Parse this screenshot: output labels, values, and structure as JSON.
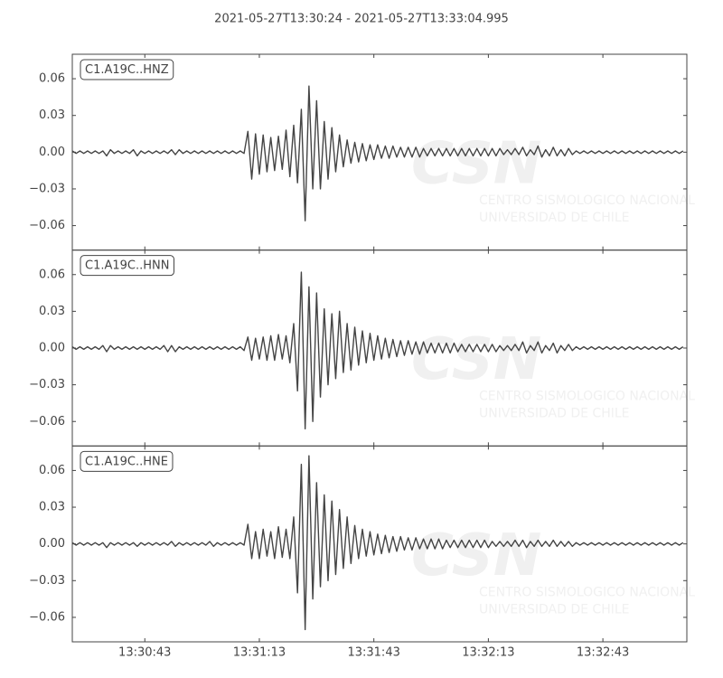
{
  "title": "2021-05-27T13:30:24  -  2021-05-27T13:33:04.995",
  "watermark": [
    "CSN",
    "CENTRO SISMOLOGICO NACIONAL",
    "UNIVERSIDAD DE CHILE"
  ],
  "chart_data": [
    {
      "type": "line",
      "label": "C1.A19C..HNZ",
      "color": "#444444",
      "xlim": [
        0,
        160.995
      ],
      "ylim": [
        -0.08,
        0.08
      ],
      "yticks": [
        {
          "value": -0.06,
          "label": "−0.06"
        },
        {
          "value": -0.03,
          "label": "−0.03"
        },
        {
          "value": 0,
          "label": "0.00"
        },
        0.03,
        0.06
      ],
      "x": [
        0,
        1,
        2,
        3,
        4,
        5,
        6,
        7,
        8,
        9,
        10,
        11,
        12,
        13,
        14,
        15,
        16,
        17,
        18,
        19,
        20,
        21,
        22,
        23,
        24,
        25,
        26,
        27,
        28,
        29,
        30,
        31,
        32,
        33,
        34,
        35,
        36,
        37,
        38,
        39,
        40,
        41,
        42,
        43,
        44,
        45,
        46,
        47,
        48,
        49,
        50,
        51,
        52,
        53,
        54,
        55,
        56,
        57,
        58,
        59,
        60,
        61,
        62,
        63,
        64,
        65,
        66,
        67,
        68,
        69,
        70,
        71,
        72,
        73,
        74,
        75,
        76,
        77,
        78,
        79,
        80,
        81,
        82,
        83,
        84,
        85,
        86,
        87,
        88,
        89,
        90,
        91,
        92,
        93,
        94,
        95,
        96,
        97,
        98,
        99,
        100,
        101,
        102,
        103,
        104,
        105,
        106,
        107,
        108,
        109,
        110,
        111,
        112,
        113,
        114,
        115,
        116,
        117,
        118,
        119,
        120,
        121,
        122,
        123,
        124,
        125,
        126,
        127,
        128,
        129,
        130,
        131,
        132,
        133,
        134,
        135,
        136,
        137,
        138,
        139,
        140,
        141,
        142,
        143,
        144,
        145,
        146,
        147,
        148,
        149,
        150,
        151,
        152,
        153,
        154,
        155,
        156,
        157,
        158,
        159,
        160
      ],
      "values": [
        0.001,
        -0.001,
        0.001,
        -0.001,
        0.001,
        -0.001,
        0.001,
        -0.001,
        0.001,
        -0.003,
        0.002,
        -0.001,
        0.001,
        -0.001,
        0.001,
        -0.001,
        0.002,
        -0.003,
        0.001,
        -0.001,
        0.001,
        -0.001,
        0.001,
        -0.001,
        0.001,
        -0.001,
        0.002,
        -0.002,
        0.002,
        -0.001,
        0.001,
        -0.001,
        0.001,
        -0.001,
        0.001,
        -0.001,
        0.001,
        -0.001,
        0.001,
        -0.001,
        0.001,
        -0.001,
        0.001,
        -0.001,
        0.001,
        -0.001,
        0.017,
        -0.022,
        0.015,
        -0.018,
        0.014,
        -0.016,
        0.012,
        -0.015,
        0.013,
        -0.014,
        0.018,
        -0.02,
        0.022,
        -0.025,
        0.035,
        -0.056,
        0.054,
        -0.03,
        0.042,
        -0.03,
        0.025,
        -0.022,
        0.02,
        -0.016,
        0.014,
        -0.012,
        0.01,
        -0.009,
        0.008,
        -0.008,
        0.007,
        -0.007,
        0.006,
        -0.006,
        0.006,
        -0.005,
        0.005,
        -0.005,
        0.005,
        -0.004,
        0.004,
        -0.004,
        0.004,
        -0.004,
        0.004,
        -0.004,
        0.003,
        -0.003,
        0.003,
        -0.003,
        0.003,
        -0.003,
        0.003,
        -0.003,
        0.003,
        -0.003,
        0.003,
        -0.003,
        0.003,
        -0.003,
        0.003,
        -0.003,
        0.003,
        -0.003,
        0.003,
        -0.003,
        0.003,
        -0.002,
        0.002,
        -0.002,
        0.003,
        -0.002,
        0.004,
        -0.003,
        0.002,
        -0.002,
        0.005,
        -0.004,
        0.002,
        -0.003,
        0.004,
        -0.003,
        0.002,
        -0.003,
        0.003,
        -0.002,
        0.001,
        -0.001,
        0.001,
        -0.001,
        0.001,
        -0.001,
        0.001,
        -0.001,
        0.001,
        -0.001,
        0.001,
        -0.001,
        0.001,
        -0.001,
        0.001,
        -0.001,
        0.001,
        -0.001,
        0.001,
        -0.001,
        0.001,
        -0.001,
        0.001,
        -0.001,
        0.001,
        -0.001,
        0.001,
        -0.001,
        0.001
      ]
    },
    {
      "type": "line",
      "label": "C1.A19C..HNN",
      "color": "#444444",
      "xlim": [
        0,
        160.995
      ],
      "ylim": [
        -0.08,
        0.08
      ],
      "yticks": [
        {
          "value": -0.06,
          "label": "−0.06"
        },
        {
          "value": -0.03,
          "label": "−0.03"
        },
        {
          "value": 0,
          "label": "0.00"
        },
        0.03,
        0.06
      ],
      "x": [
        0,
        1,
        2,
        3,
        4,
        5,
        6,
        7,
        8,
        9,
        10,
        11,
        12,
        13,
        14,
        15,
        16,
        17,
        18,
        19,
        20,
        21,
        22,
        23,
        24,
        25,
        26,
        27,
        28,
        29,
        30,
        31,
        32,
        33,
        34,
        35,
        36,
        37,
        38,
        39,
        40,
        41,
        42,
        43,
        44,
        45,
        46,
        47,
        48,
        49,
        50,
        51,
        52,
        53,
        54,
        55,
        56,
        57,
        58,
        59,
        60,
        61,
        62,
        63,
        64,
        65,
        66,
        67,
        68,
        69,
        70,
        71,
        72,
        73,
        74,
        75,
        76,
        77,
        78,
        79,
        80,
        81,
        82,
        83,
        84,
        85,
        86,
        87,
        88,
        89,
        90,
        91,
        92,
        93,
        94,
        95,
        96,
        97,
        98,
        99,
        100,
        101,
        102,
        103,
        104,
        105,
        106,
        107,
        108,
        109,
        110,
        111,
        112,
        113,
        114,
        115,
        116,
        117,
        118,
        119,
        120,
        121,
        122,
        123,
        124,
        125,
        126,
        127,
        128,
        129,
        130,
        131,
        132,
        133,
        134,
        135,
        136,
        137,
        138,
        139,
        140,
        141,
        142,
        143,
        144,
        145,
        146,
        147,
        148,
        149,
        150,
        151,
        152,
        153,
        154,
        155,
        156,
        157,
        158,
        159,
        160
      ],
      "values": [
        0.001,
        -0.001,
        0.001,
        -0.001,
        0.001,
        -0.001,
        0.001,
        -0.001,
        0.002,
        -0.003,
        0.002,
        -0.001,
        0.001,
        -0.001,
        0.001,
        -0.001,
        0.001,
        -0.001,
        0.001,
        -0.001,
        0.001,
        -0.001,
        0.001,
        -0.001,
        0.002,
        -0.003,
        0.002,
        -0.003,
        0.001,
        -0.001,
        0.001,
        -0.001,
        0.001,
        -0.001,
        0.001,
        -0.001,
        0.001,
        -0.001,
        0.001,
        -0.001,
        0.001,
        -0.001,
        0.001,
        -0.001,
        0.001,
        -0.002,
        0.009,
        -0.01,
        0.008,
        -0.009,
        0.009,
        -0.01,
        0.01,
        -0.01,
        0.011,
        -0.009,
        0.01,
        -0.012,
        0.02,
        -0.035,
        0.062,
        -0.066,
        0.05,
        -0.06,
        0.045,
        -0.04,
        0.032,
        -0.03,
        0.028,
        -0.025,
        0.03,
        -0.02,
        0.02,
        -0.018,
        0.017,
        -0.014,
        0.014,
        -0.012,
        0.012,
        -0.01,
        0.01,
        -0.009,
        0.008,
        -0.008,
        0.007,
        -0.007,
        0.006,
        -0.006,
        0.006,
        -0.005,
        0.005,
        -0.005,
        0.005,
        -0.004,
        0.004,
        -0.004,
        0.004,
        -0.004,
        0.004,
        -0.004,
        0.004,
        -0.003,
        0.003,
        -0.003,
        0.003,
        -0.003,
        0.003,
        -0.003,
        0.003,
        -0.003,
        0.003,
        -0.003,
        0.002,
        -0.002,
        0.002,
        -0.002,
        0.003,
        -0.002,
        0.005,
        -0.004,
        0.002,
        -0.002,
        0.005,
        -0.004,
        0.002,
        -0.002,
        0.004,
        -0.004,
        0.002,
        -0.002,
        0.003,
        -0.002,
        0.001,
        -0.001,
        0.001,
        -0.001,
        0.001,
        -0.001,
        0.001,
        -0.001,
        0.001,
        -0.001,
        0.001,
        -0.001,
        0.001,
        -0.001,
        0.001,
        -0.001,
        0.001,
        -0.001,
        0.001,
        -0.001,
        0.001,
        -0.001,
        0.001,
        -0.001,
        0.001,
        -0.001,
        0.001,
        -0.001,
        0.001
      ]
    },
    {
      "type": "line",
      "label": "C1.A19C..HNE",
      "color": "#444444",
      "xlim": [
        0,
        160.995
      ],
      "ylim": [
        -0.08,
        0.08
      ],
      "yticks": [
        {
          "value": -0.06,
          "label": "−0.06"
        },
        {
          "value": -0.03,
          "label": "−0.03"
        },
        {
          "value": 0,
          "label": "0.00"
        },
        0.03,
        0.06
      ],
      "xticks": [
        {
          "value": 19,
          "label": "13:30:43"
        },
        {
          "value": 49,
          "label": "13:31:13"
        },
        {
          "value": 79,
          "label": "13:31:43"
        },
        {
          "value": 109,
          "label": "13:32:13"
        },
        {
          "value": 139,
          "label": "13:32:43"
        }
      ],
      "x": [
        0,
        1,
        2,
        3,
        4,
        5,
        6,
        7,
        8,
        9,
        10,
        11,
        12,
        13,
        14,
        15,
        16,
        17,
        18,
        19,
        20,
        21,
        22,
        23,
        24,
        25,
        26,
        27,
        28,
        29,
        30,
        31,
        32,
        33,
        34,
        35,
        36,
        37,
        38,
        39,
        40,
        41,
        42,
        43,
        44,
        45,
        46,
        47,
        48,
        49,
        50,
        51,
        52,
        53,
        54,
        55,
        56,
        57,
        58,
        59,
        60,
        61,
        62,
        63,
        64,
        65,
        66,
        67,
        68,
        69,
        70,
        71,
        72,
        73,
        74,
        75,
        76,
        77,
        78,
        79,
        80,
        81,
        82,
        83,
        84,
        85,
        86,
        87,
        88,
        89,
        90,
        91,
        92,
        93,
        94,
        95,
        96,
        97,
        98,
        99,
        100,
        101,
        102,
        103,
        104,
        105,
        106,
        107,
        108,
        109,
        110,
        111,
        112,
        113,
        114,
        115,
        116,
        117,
        118,
        119,
        120,
        121,
        122,
        123,
        124,
        125,
        126,
        127,
        128,
        129,
        130,
        131,
        132,
        133,
        134,
        135,
        136,
        137,
        138,
        139,
        140,
        141,
        142,
        143,
        144,
        145,
        146,
        147,
        148,
        149,
        150,
        151,
        152,
        153,
        154,
        155,
        156,
        157,
        158,
        159,
        160
      ],
      "values": [
        0.001,
        -0.001,
        0.001,
        -0.001,
        0.001,
        -0.001,
        0.001,
        -0.001,
        0.001,
        -0.003,
        0.001,
        -0.001,
        0.001,
        -0.001,
        0.001,
        -0.001,
        0.001,
        -0.002,
        0.001,
        -0.001,
        0.001,
        -0.001,
        0.001,
        -0.001,
        0.001,
        -0.001,
        0.002,
        -0.002,
        0.001,
        -0.001,
        0.001,
        -0.001,
        0.001,
        -0.001,
        0.001,
        -0.001,
        0.002,
        -0.002,
        0.001,
        -0.001,
        0.001,
        -0.001,
        0.001,
        -0.001,
        0.001,
        -0.001,
        0.016,
        -0.012,
        0.01,
        -0.012,
        0.012,
        -0.01,
        0.01,
        -0.012,
        0.014,
        -0.011,
        0.012,
        -0.012,
        0.022,
        -0.04,
        0.065,
        -0.07,
        0.072,
        -0.045,
        0.05,
        -0.035,
        0.04,
        -0.03,
        0.035,
        -0.025,
        0.028,
        -0.02,
        0.022,
        -0.016,
        0.015,
        -0.012,
        0.012,
        -0.01,
        0.01,
        -0.009,
        0.008,
        -0.008,
        0.007,
        -0.007,
        0.006,
        -0.006,
        0.006,
        -0.005,
        0.005,
        -0.005,
        0.005,
        -0.004,
        0.004,
        -0.004,
        0.004,
        -0.004,
        0.004,
        -0.004,
        0.003,
        -0.003,
        0.003,
        -0.003,
        0.003,
        -0.003,
        0.003,
        -0.003,
        0.003,
        -0.003,
        0.003,
        -0.003,
        0.002,
        -0.002,
        0.002,
        -0.002,
        0.002,
        -0.002,
        0.003,
        -0.002,
        0.003,
        -0.003,
        0.002,
        -0.002,
        0.003,
        -0.002,
        0.002,
        -0.002,
        0.003,
        -0.002,
        0.002,
        -0.002,
        0.002,
        -0.002,
        0.001,
        -0.001,
        0.001,
        -0.001,
        0.001,
        -0.001,
        0.001,
        -0.001,
        0.001,
        -0.001,
        0.001,
        -0.001,
        0.001,
        -0.001,
        0.001,
        -0.001,
        0.001,
        -0.001,
        0.001,
        -0.001,
        0.001,
        -0.001,
        0.001,
        -0.001,
        0.001,
        -0.001,
        0.001,
        -0.001,
        0.001
      ]
    }
  ]
}
